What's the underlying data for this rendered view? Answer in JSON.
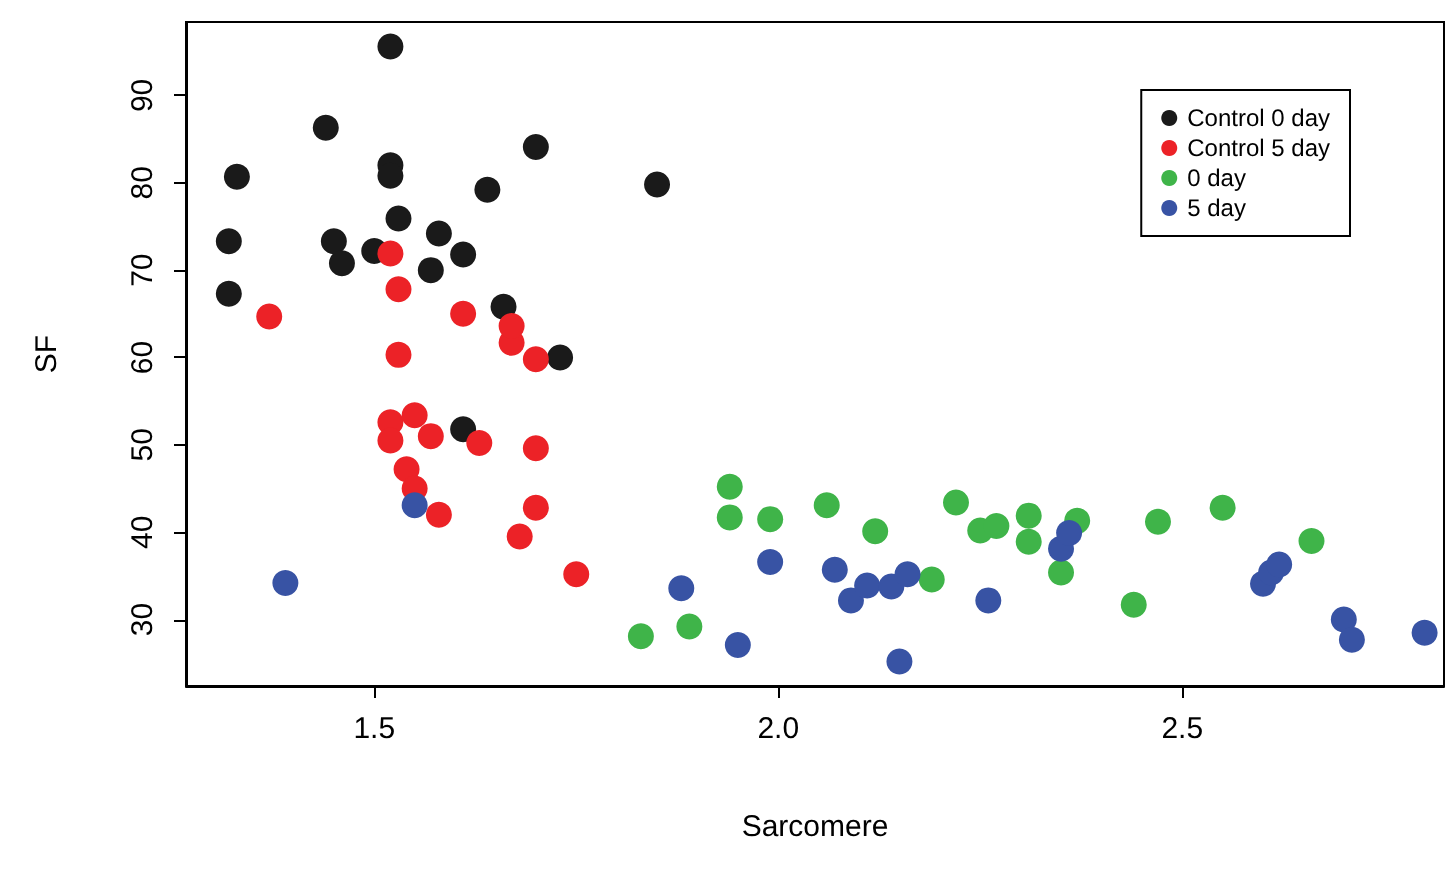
{
  "chart_data": {
    "type": "scatter",
    "xlabel": "Sarcomere",
    "ylabel": "SF",
    "xlim": [
      1.267,
      2.824
    ],
    "xticks": [
      1.5,
      {
        "value": 2,
        "label": "2.0"
      },
      2.5
    ],
    "ylim": [
      22.4,
      98.4
    ],
    "yticks": [
      30,
      40,
      50,
      60,
      70,
      80,
      90
    ],
    "grid": false,
    "legend": "top right",
    "marker": "circle",
    "series": [
      {
        "name": "Control 0 day",
        "color": "#1a1a1a",
        "x": [
          1.32,
          1.32,
          1.33,
          1.44,
          1.45,
          1.46,
          1.52,
          1.52,
          1.52,
          1.53,
          1.5,
          1.58,
          1.57,
          1.61,
          1.64,
          1.66,
          1.7,
          1.73,
          1.61,
          1.85
        ],
        "values": [
          73.3,
          67.3,
          80.7,
          86.3,
          73.3,
          70.8,
          95.6,
          82,
          80.8,
          75.9,
          72.2,
          74.2,
          70,
          71.8,
          79.2,
          65.8,
          84.1,
          60,
          51.8,
          79.8
        ]
      },
      {
        "name": "Control 5 day",
        "color": "#ec2227",
        "x": [
          1.37,
          1.52,
          1.53,
          1.53,
          1.52,
          1.55,
          1.52,
          1.57,
          1.54,
          1.55,
          1.58,
          1.61,
          1.63,
          1.67,
          1.67,
          1.7,
          1.7,
          1.7,
          1.68,
          1.75
        ],
        "values": [
          64.7,
          71.9,
          67.8,
          60.3,
          52.6,
          53.4,
          50.5,
          51,
          47.2,
          45,
          42,
          65,
          50.2,
          61.7,
          63.6,
          59.8,
          49.6,
          42.8,
          39.5,
          35.2
        ]
      },
      {
        "name": "0 day",
        "color": "#3fb449",
        "x": [
          1.83,
          1.89,
          1.94,
          1.94,
          1.99,
          2.06,
          2.12,
          2.19,
          2.22,
          2.25,
          2.27,
          2.31,
          2.31,
          2.35,
          2.37,
          2.44,
          2.47,
          2.55,
          2.66
        ],
        "values": [
          28.1,
          29.2,
          45.2,
          41.7,
          41.5,
          43.1,
          40.1,
          34.6,
          43.4,
          40.2,
          40.7,
          41.9,
          38.9,
          35.4,
          41.3,
          31.7,
          41.2,
          42.8,
          39
        ]
      },
      {
        "name": "5 day",
        "color": "#3853a4",
        "x": [
          1.39,
          1.55,
          1.88,
          1.95,
          1.99,
          2.07,
          2.09,
          2.11,
          2.14,
          2.15,
          2.16,
          2.26,
          2.35,
          2.36,
          2.6,
          2.61,
          2.62,
          2.7,
          2.71,
          2.8
        ],
        "values": [
          34.2,
          43.1,
          33.6,
          27.1,
          36.6,
          35.7,
          32.2,
          33.9,
          33.8,
          25.2,
          35.2,
          32.2,
          38.1,
          39.9,
          34.1,
          35.4,
          36.3,
          30,
          27.7,
          28.5
        ]
      }
    ]
  }
}
